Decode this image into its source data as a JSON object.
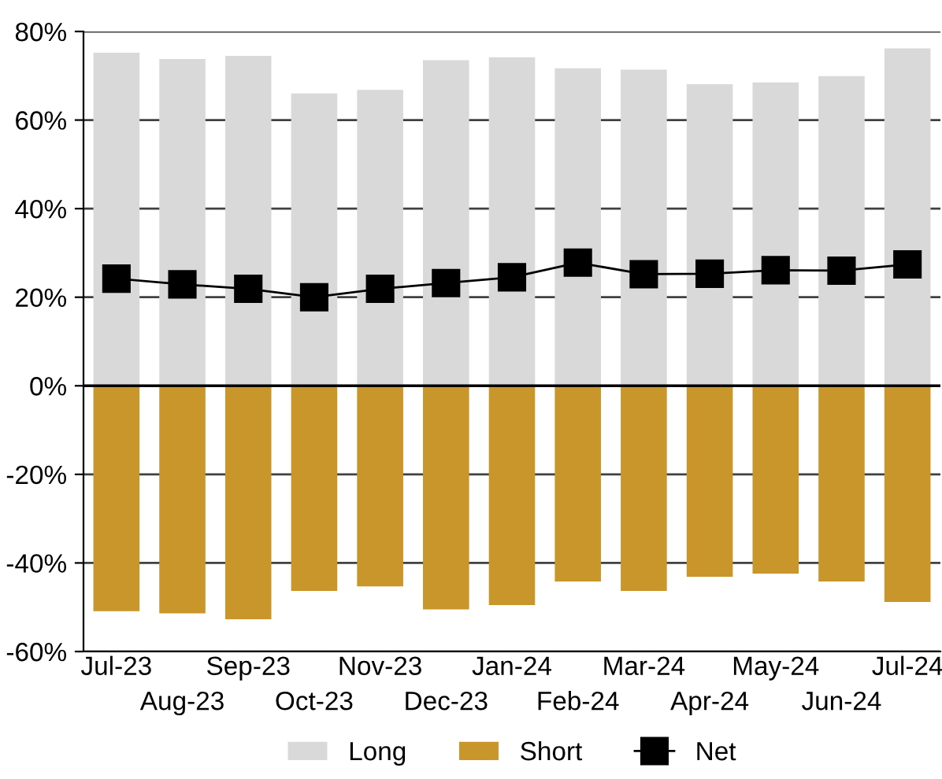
{
  "chart_data": {
    "type": "bar",
    "stacked": true,
    "categories": [
      "Jul-23",
      "Aug-23",
      "Sep-23",
      "Oct-23",
      "Nov-23",
      "Dec-23",
      "Jan-24",
      "Feb-24",
      "Mar-24",
      "Apr-24",
      "May-24",
      "Jun-24",
      "Jul-24"
    ],
    "series": [
      {
        "name": "Long",
        "color": "#d9d9d9",
        "values": [
          75.2,
          73.8,
          74.5,
          66.0,
          66.8,
          73.5,
          74.2,
          71.7,
          71.4,
          68.1,
          68.5,
          69.9,
          76.2
        ]
      },
      {
        "name": "Short",
        "color": "#c9962b",
        "values": [
          -50.9,
          -51.4,
          -52.7,
          -46.3,
          -45.3,
          -50.5,
          -49.5,
          -44.2,
          -46.3,
          -43.1,
          -42.4,
          -44.2,
          -48.8
        ]
      },
      {
        "name": "Net",
        "type": "line",
        "color": "#000000",
        "marker": "square",
        "values": [
          24.2,
          22.9,
          21.9,
          20.0,
          21.9,
          23.2,
          24.5,
          27.8,
          25.2,
          25.3,
          26.1,
          26.0,
          27.4
        ]
      }
    ],
    "ylim": [
      -60,
      80
    ],
    "yticks": [
      {
        "value": -60,
        "label": "-60%"
      },
      {
        "value": -40,
        "label": "-40%"
      },
      {
        "value": -20,
        "label": "-20%"
      },
      {
        "value": 0,
        "label": "0%"
      },
      {
        "value": 20,
        "label": "20%"
      },
      {
        "value": 40,
        "label": "40%"
      },
      {
        "value": 60,
        "label": "60%"
      },
      {
        "value": 80,
        "label": "80%"
      }
    ],
    "grid": "y",
    "legend": "bottom"
  }
}
